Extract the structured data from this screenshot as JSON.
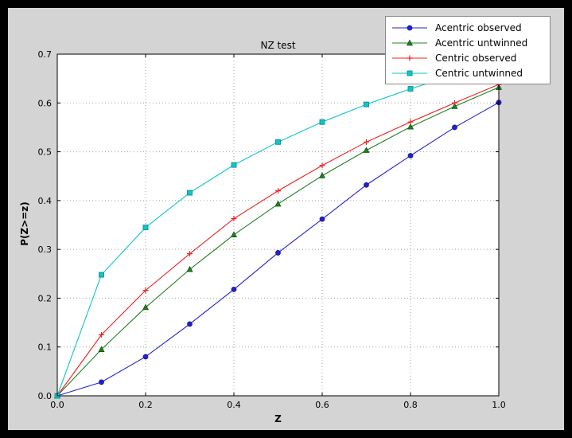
{
  "window": {
    "outer_background": "#000000",
    "figure_background": "#d4d4d4",
    "plot_background": "#ffffff",
    "grid_color": "#a0a0a0"
  },
  "chart_data": {
    "type": "line",
    "title": "NZ test",
    "xlabel": "Z",
    "ylabel": "P(Z>=z)",
    "xlim": [
      0.0,
      1.0
    ],
    "ylim": [
      0.0,
      0.7
    ],
    "xticks": [
      0.0,
      0.2,
      0.4,
      0.6,
      0.8,
      1.0
    ],
    "yticks": [
      0.0,
      0.1,
      0.2,
      0.3,
      0.4,
      0.5,
      0.6,
      0.7
    ],
    "grid": true,
    "legend_position": "upper right, partly above axes",
    "x": [
      0.0,
      0.1,
      0.2,
      0.3,
      0.4,
      0.5,
      0.6,
      0.7,
      0.8,
      0.9,
      1.0
    ],
    "series": [
      {
        "name": "Acentric observed",
        "color": "#2222cc",
        "edge": "#151599",
        "marker": "circle",
        "values": [
          0.0,
          0.028,
          0.08,
          0.147,
          0.218,
          0.293,
          0.362,
          0.432,
          0.492,
          0.55,
          0.601
        ]
      },
      {
        "name": "Acentric untwinned",
        "color": "#228022",
        "edge": "#145214",
        "marker": "triangle",
        "values": [
          0.0,
          0.095,
          0.181,
          0.259,
          0.33,
          0.393,
          0.451,
          0.503,
          0.551,
          0.593,
          0.632
        ]
      },
      {
        "name": "Centric observed",
        "color": "#ee2222",
        "edge": "#ee2222",
        "marker": "plus",
        "values": [
          0.0,
          0.125,
          0.216,
          0.291,
          0.363,
          0.42,
          0.472,
          0.52,
          0.561,
          0.6,
          0.638
        ]
      },
      {
        "name": "Centric untwinned",
        "color": "#10c5c9",
        "edge": "#0d8f93",
        "marker": "square",
        "values": [
          0.0,
          0.248,
          0.345,
          0.416,
          0.473,
          0.52,
          0.561,
          0.597,
          0.629,
          0.657,
          0.683
        ]
      }
    ]
  }
}
